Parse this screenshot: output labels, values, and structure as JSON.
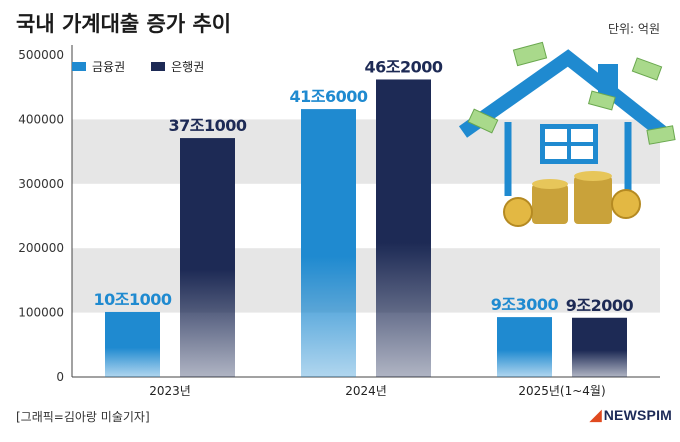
{
  "title": "국내 가계대출 증가 추이",
  "unit_label": "단위: 억원",
  "credit": "[그래픽=김아랑 미술기자]",
  "logo": "NEWSPIM",
  "colors": {
    "series1": "#1f8ad0",
    "series2": "#1d2a55",
    "band": "#e6e6e6",
    "label1": "#1f8ad0",
    "label2": "#1d2a55"
  },
  "chart_data": {
    "type": "bar",
    "categories": [
      "2023년",
      "2024년",
      "2025년(1~4월)"
    ],
    "series": [
      {
        "name": "금융권",
        "values": [
          101000,
          416000,
          93000
        ],
        "labels": [
          "10조1000",
          "41조6000",
          "9조3000"
        ]
      },
      {
        "name": "은행권",
        "values": [
          371000,
          462000,
          92000
        ],
        "labels": [
          "37조1000",
          "46조2000",
          "9조2000"
        ]
      }
    ],
    "yticks": [
      0,
      100000,
      200000,
      300000,
      400000,
      500000
    ],
    "ylim": [
      0,
      500000
    ],
    "legend_position": "top-left"
  }
}
